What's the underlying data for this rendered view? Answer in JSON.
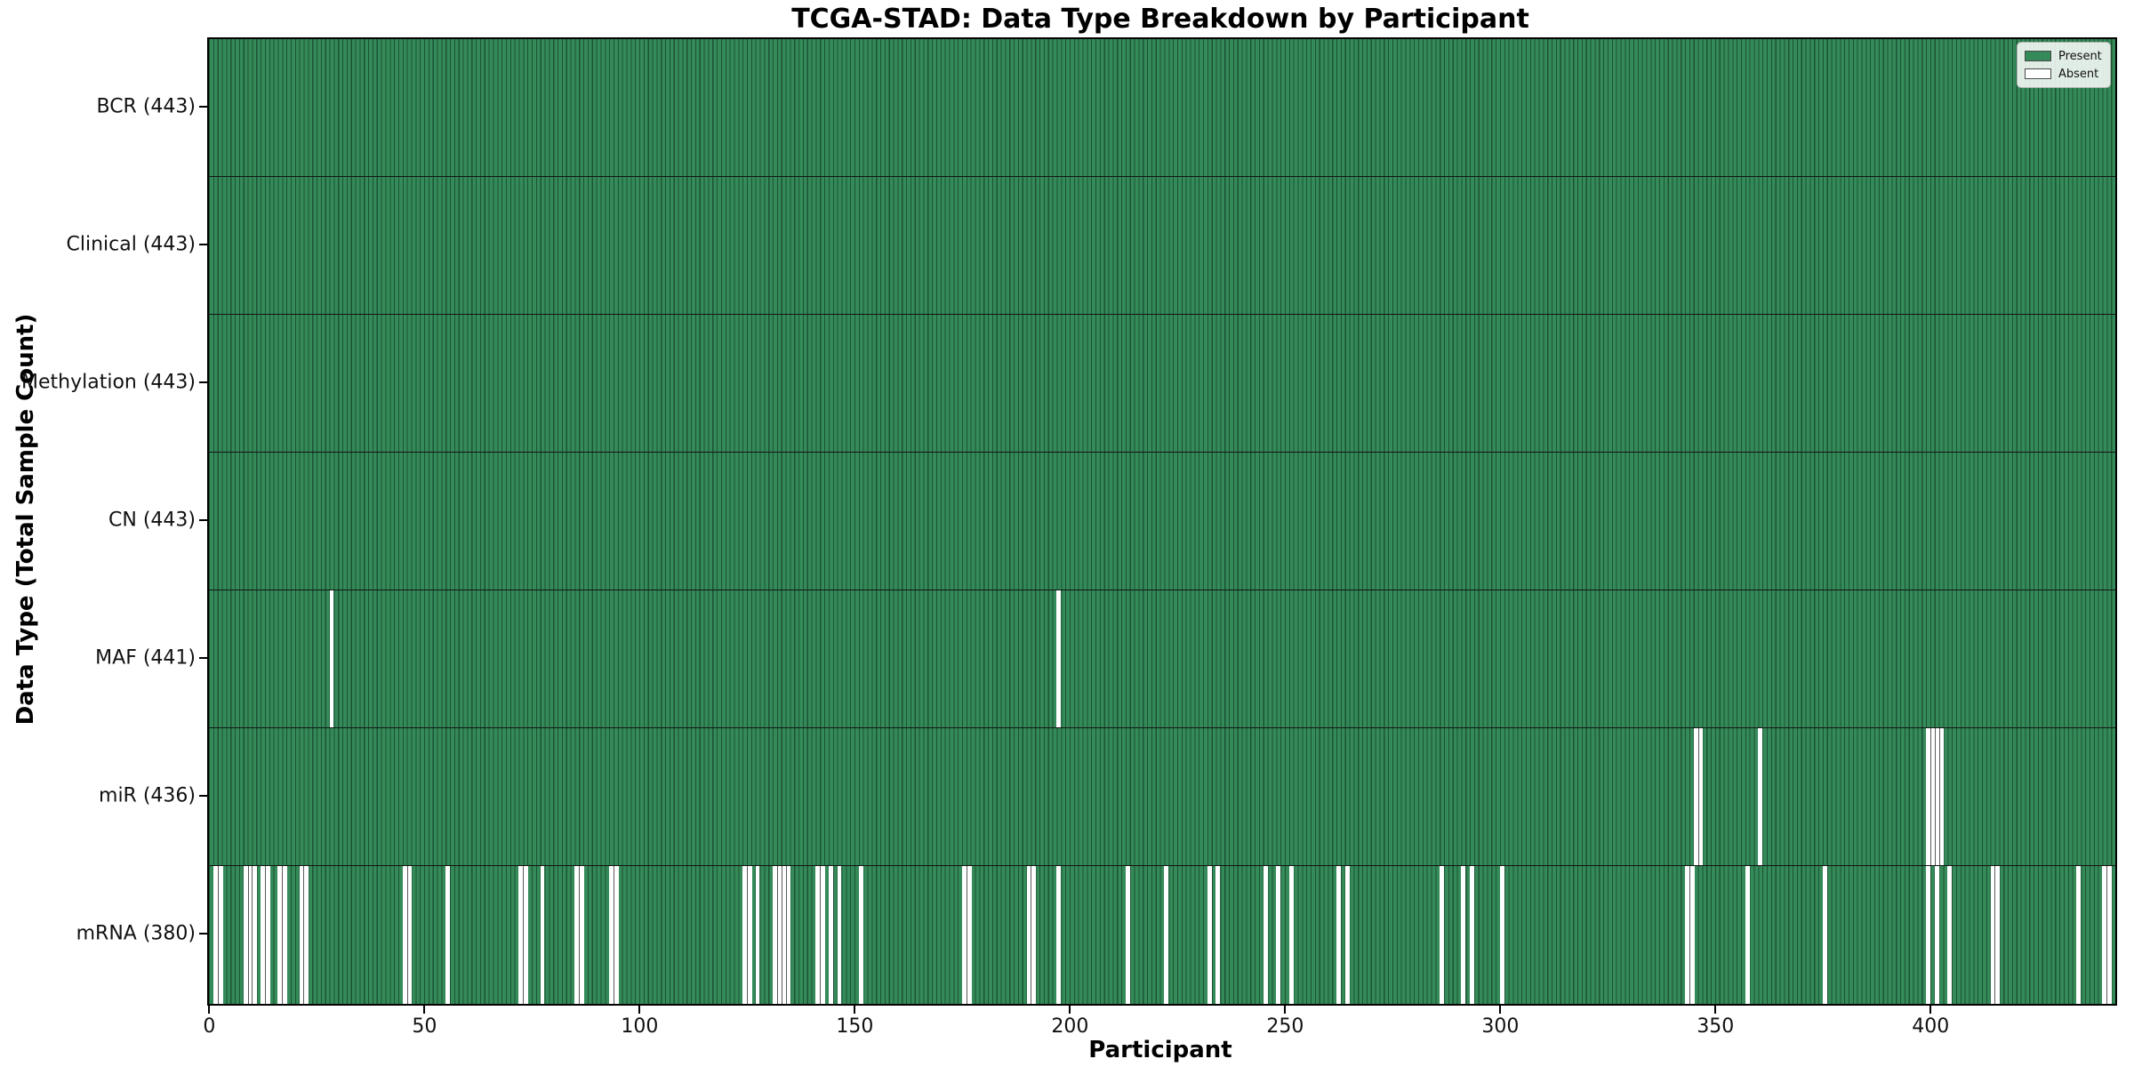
{
  "title": "TCGA-STAD: Data Type Breakdown by Participant",
  "colors": {
    "present_fill": "#348a58",
    "bar_edge": "#1c5334",
    "absent_fill": "#ffffff",
    "absent_inner_edge": "#5a5a5a",
    "row_separator": "#151515",
    "plot_border": "#000000"
  },
  "legend": {
    "items": [
      {
        "label": "Present",
        "color": "#348a58"
      },
      {
        "label": "Absent",
        "color": "#ffffff"
      }
    ]
  },
  "chart_data": {
    "type": "heatmap",
    "title": "TCGA-STAD: Data Type Breakdown by Participant",
    "xlabel": "Participant",
    "ylabel": "Data Type (Total Sample Count)",
    "n_participants": 443,
    "x_ticks": [
      0,
      50,
      100,
      150,
      200,
      250,
      300,
      350,
      400
    ],
    "x_range": [
      0,
      443
    ],
    "legend": [
      "Present",
      "Absent"
    ],
    "legend_position": "upper right",
    "grid": false,
    "rows": [
      {
        "label": "BCR (443)",
        "name": "BCR",
        "present_count": 443,
        "absent_participants": []
      },
      {
        "label": "Clinical (443)",
        "name": "Clinical",
        "present_count": 443,
        "absent_participants": []
      },
      {
        "label": "Methylation (443)",
        "name": "Methylation",
        "present_count": 443,
        "absent_participants": []
      },
      {
        "label": "CN (443)",
        "name": "CN",
        "present_count": 443,
        "absent_participants": []
      },
      {
        "label": "MAF (441)",
        "name": "MAF",
        "present_count": 441,
        "absent_participants": [
          28,
          197
        ]
      },
      {
        "label": "miR (436)",
        "name": "miR",
        "present_count": 436,
        "absent_participants": [
          345,
          346,
          360,
          399,
          400,
          401,
          402
        ]
      },
      {
        "label": "mRNA (380)",
        "name": "mRNA",
        "present_count": 380,
        "absent_participants": [
          1,
          2,
          8,
          9,
          10,
          12,
          13,
          16,
          17,
          21,
          22,
          45,
          46,
          55,
          72,
          73,
          77,
          85,
          86,
          93,
          94,
          124,
          125,
          127,
          131,
          132,
          133,
          134,
          141,
          142,
          144,
          146,
          151,
          175,
          176,
          190,
          191,
          197,
          213,
          222,
          232,
          234,
          245,
          248,
          251,
          262,
          264,
          286,
          291,
          293,
          300,
          343,
          344,
          357,
          375,
          399,
          401,
          404,
          414,
          415,
          434,
          440,
          441
        ]
      }
    ]
  }
}
